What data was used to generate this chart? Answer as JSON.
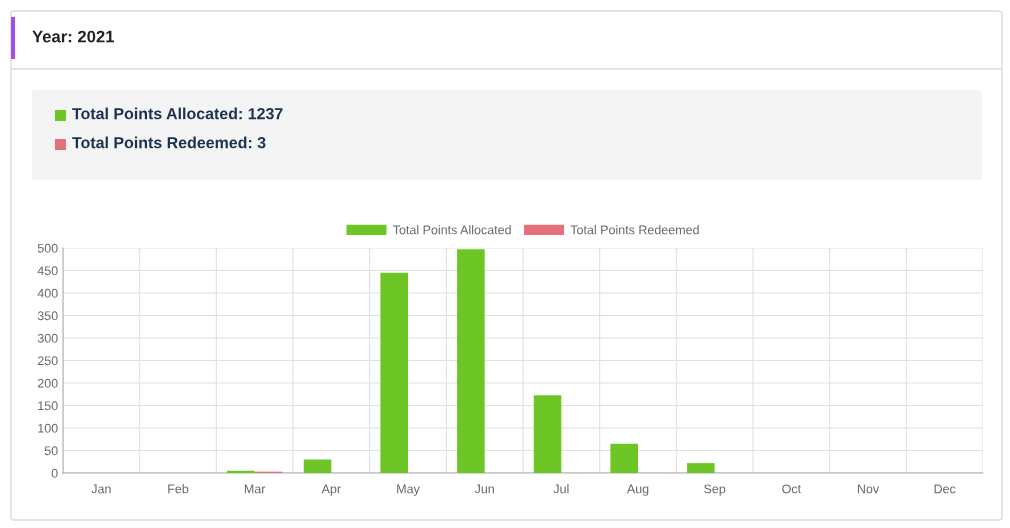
{
  "chart_data": {
    "type": "bar",
    "title": "Year: 2021",
    "annotations": [
      "Total Points Allocated: 1237",
      "Total Points Redeemed: 3"
    ],
    "categories": [
      "Jan",
      "Feb",
      "Mar",
      "Apr",
      "May",
      "Jun",
      "Jul",
      "Aug",
      "Sep",
      "Oct",
      "Nov",
      "Dec"
    ],
    "series": [
      {
        "name": "Total Points Allocated",
        "color": "#6ec626",
        "values": [
          0,
          0,
          5,
          30,
          445,
          497,
          173,
          65,
          22,
          0,
          0,
          0
        ]
      },
      {
        "name": "Total Points Redeemed",
        "color": "#e5707a",
        "values": [
          0,
          0,
          3,
          0,
          0,
          0,
          0,
          0,
          0,
          0,
          0,
          0
        ]
      }
    ],
    "ylim": [
      0,
      500
    ],
    "yticks": [
      0,
      50,
      100,
      150,
      200,
      250,
      300,
      350,
      400,
      450,
      500
    ],
    "grid": true,
    "legend": "top"
  }
}
